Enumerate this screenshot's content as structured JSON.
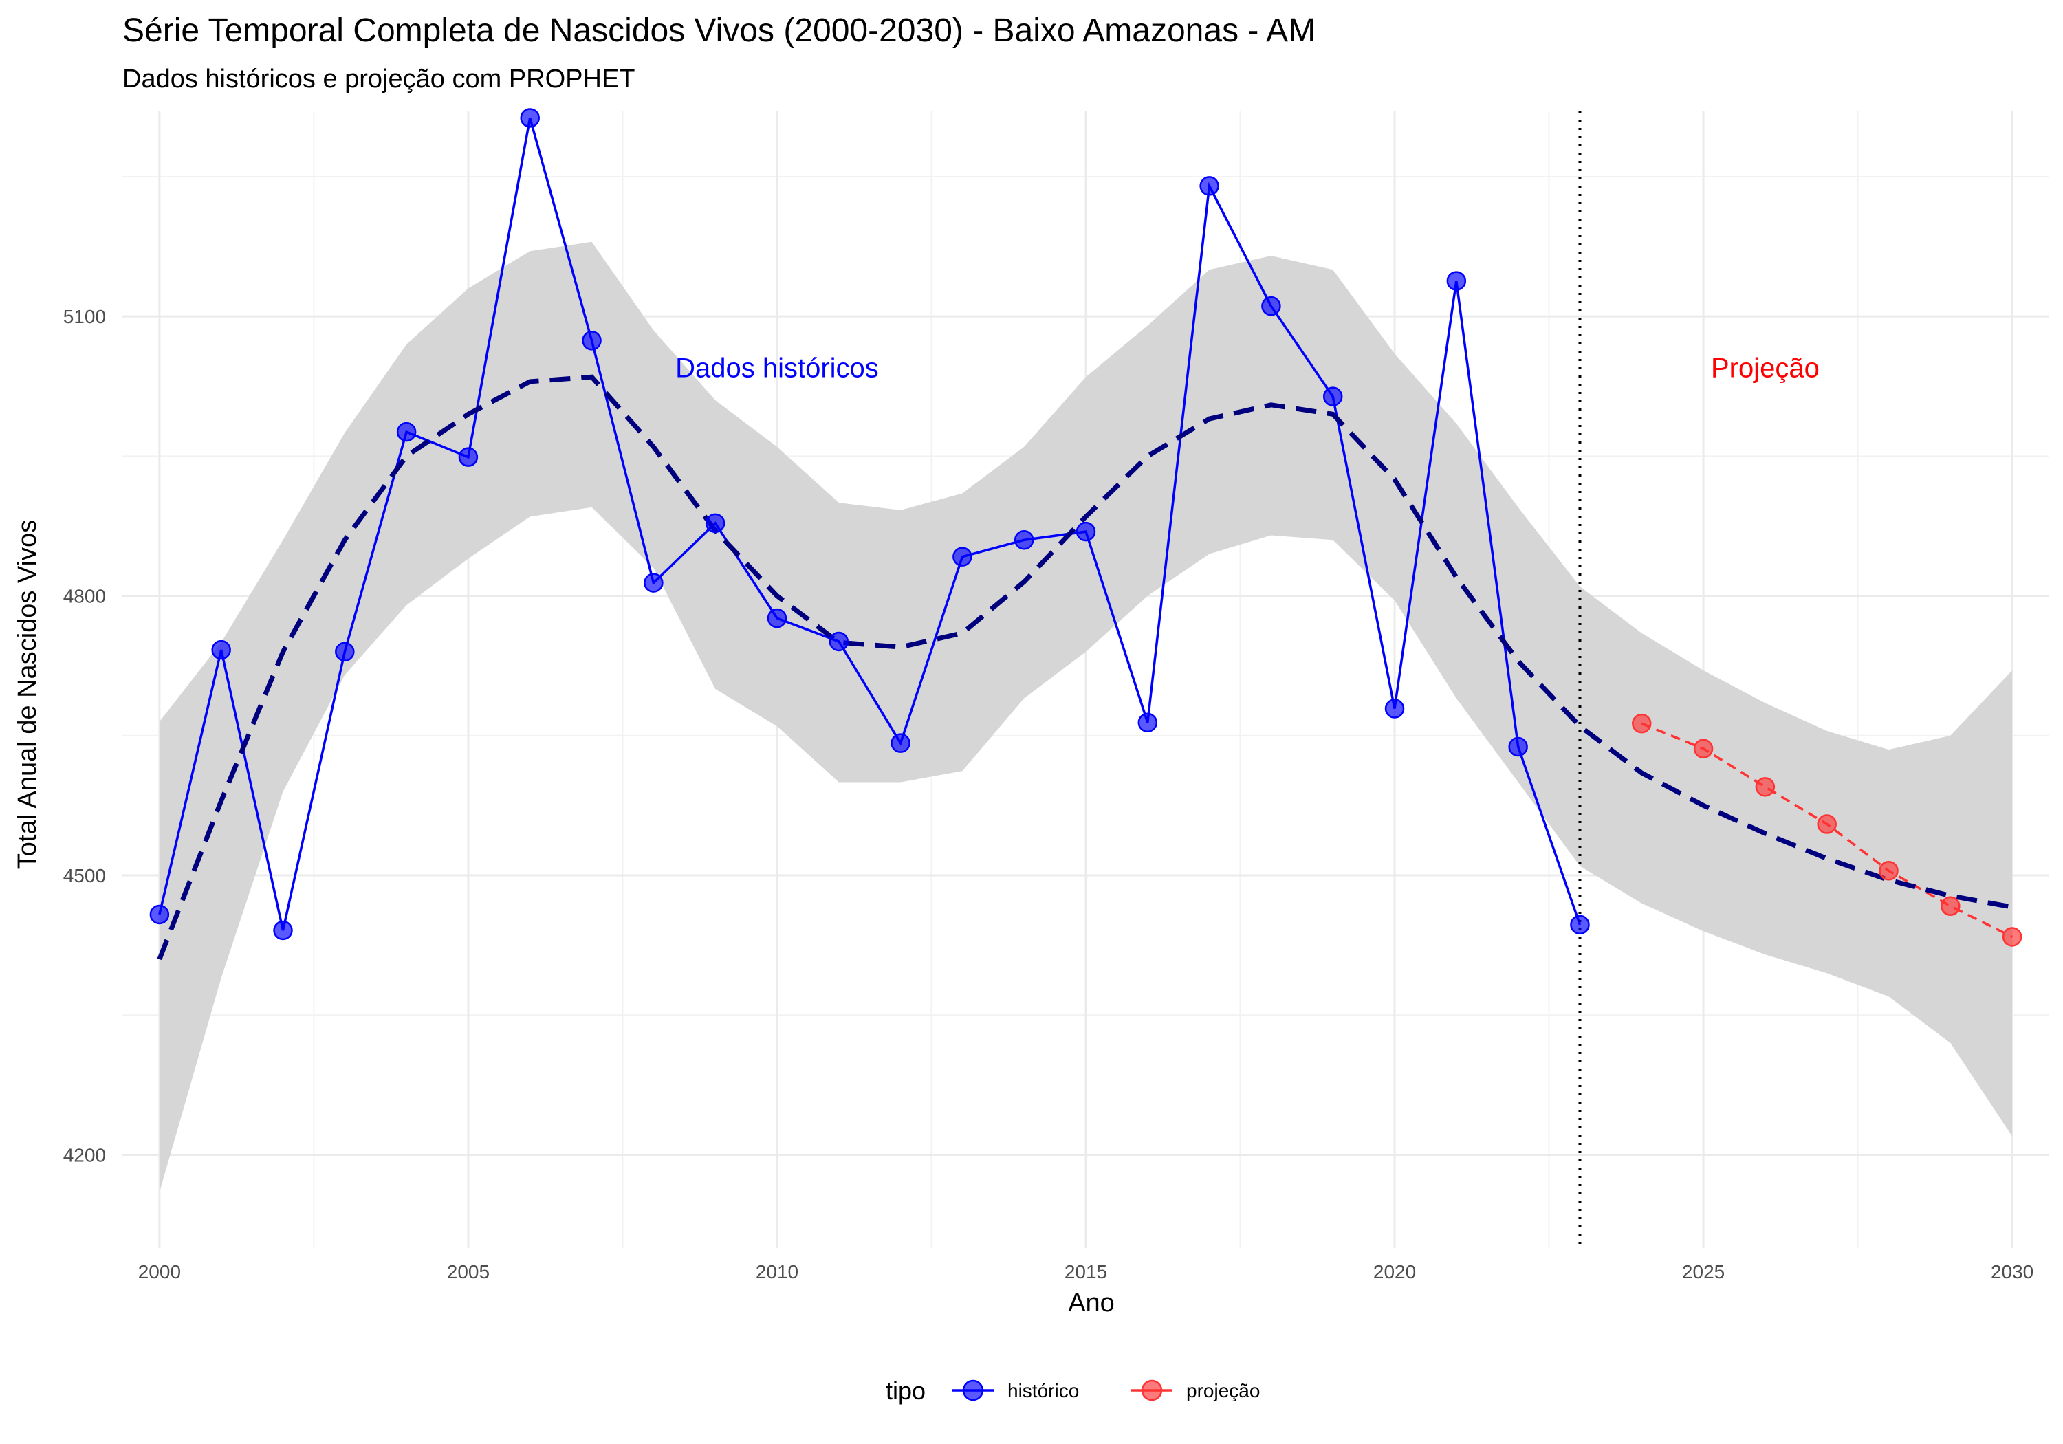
{
  "chart_data": {
    "type": "line",
    "title": "Série Temporal Completa de Nascidos Vivos (2000-2030) -  Baixo Amazonas - AM",
    "subtitle": "Dados históricos e projeção com PROPHET",
    "xlabel": "Ano",
    "ylabel": "Total Anual de Nascidos Vivos",
    "xlim": [
      1999.4,
      2030.6
    ],
    "ylim": [
      4100,
      5320
    ],
    "x_ticks": [
      2000,
      2005,
      2010,
      2015,
      2020,
      2025,
      2030
    ],
    "y_ticks": [
      4200,
      4500,
      4800,
      5100
    ],
    "grid": true,
    "legend": {
      "title": "tipo",
      "position": "bottom",
      "entries": [
        {
          "label": "histórico",
          "color": "#0000ff"
        },
        {
          "label": "projeção",
          "color": "#ff3333"
        }
      ]
    },
    "annotations": [
      {
        "text": "Dados históricos",
        "x": 2010,
        "y": 5045,
        "color": "#0000ff"
      },
      {
        "text": "Projeção",
        "x": 2026,
        "y": 5045,
        "color": "#ff0000"
      }
    ],
    "vline": {
      "x": 2023,
      "style": "dotted"
    },
    "series": [
      {
        "name": "histórico",
        "color": "#0000ff",
        "x": [
          2000,
          2001,
          2002,
          2003,
          2004,
          2005,
          2006,
          2007,
          2008,
          2009,
          2010,
          2011,
          2012,
          2013,
          2014,
          2015,
          2016,
          2017,
          2018,
          2019,
          2020,
          2021,
          2022,
          2023
        ],
        "values": [
          4458,
          4742,
          4441,
          4740,
          4976,
          4949,
          5313,
          5074,
          4814,
          4878,
          4776,
          4751,
          4642,
          4842,
          4860,
          4869,
          4664,
          5240,
          5111,
          5014,
          4679,
          5138,
          4638,
          4447
        ]
      },
      {
        "name": "projeção",
        "color": "#ff3333",
        "x": [
          2024,
          2025,
          2026,
          2027,
          2028,
          2029,
          2030
        ],
        "values": [
          4663,
          4636,
          4595,
          4555,
          4505,
          4467,
          4434
        ]
      }
    ],
    "trend": {
      "color": "#00007f",
      "x": [
        2000,
        2001,
        2002,
        2003,
        2004,
        2005,
        2006,
        2007,
        2008,
        2009,
        2010,
        2011,
        2012,
        2013,
        2014,
        2015,
        2016,
        2017,
        2018,
        2019,
        2020,
        2021,
        2022,
        2023,
        2024,
        2025,
        2026,
        2027,
        2028,
        2029,
        2030
      ],
      "values": [
        4410,
        4580,
        4740,
        4860,
        4950,
        4995,
        5030,
        5035,
        4960,
        4870,
        4800,
        4750,
        4745,
        4760,
        4815,
        4885,
        4950,
        4990,
        5005,
        4995,
        4925,
        4820,
        4730,
        4660,
        4610,
        4575,
        4545,
        4518,
        4495,
        4478,
        4466
      ]
    },
    "band": {
      "color": "#d6d6d6",
      "x": [
        2000,
        2001,
        2002,
        2003,
        2004,
        2005,
        2006,
        2007,
        2008,
        2009,
        2010,
        2011,
        2012,
        2013,
        2014,
        2015,
        2016,
        2017,
        2018,
        2019,
        2020,
        2021,
        2022,
        2023,
        2024,
        2025,
        2026,
        2027,
        2028,
        2029,
        2030
      ],
      "upper": [
        4665,
        4750,
        4860,
        4975,
        5070,
        5130,
        5170,
        5180,
        5085,
        5010,
        4960,
        4900,
        4892,
        4910,
        4960,
        5035,
        5090,
        5150,
        5165,
        5150,
        5060,
        4985,
        4895,
        4810,
        4760,
        4720,
        4685,
        4655,
        4635,
        4650,
        4720
      ],
      "lower": [
        4160,
        4390,
        4590,
        4715,
        4790,
        4840,
        4885,
        4895,
        4830,
        4700,
        4660,
        4600,
        4600,
        4612,
        4690,
        4740,
        4800,
        4845,
        4865,
        4860,
        4795,
        4690,
        4600,
        4510,
        4470,
        4440,
        4415,
        4395,
        4370,
        4320,
        4220
      ]
    }
  }
}
